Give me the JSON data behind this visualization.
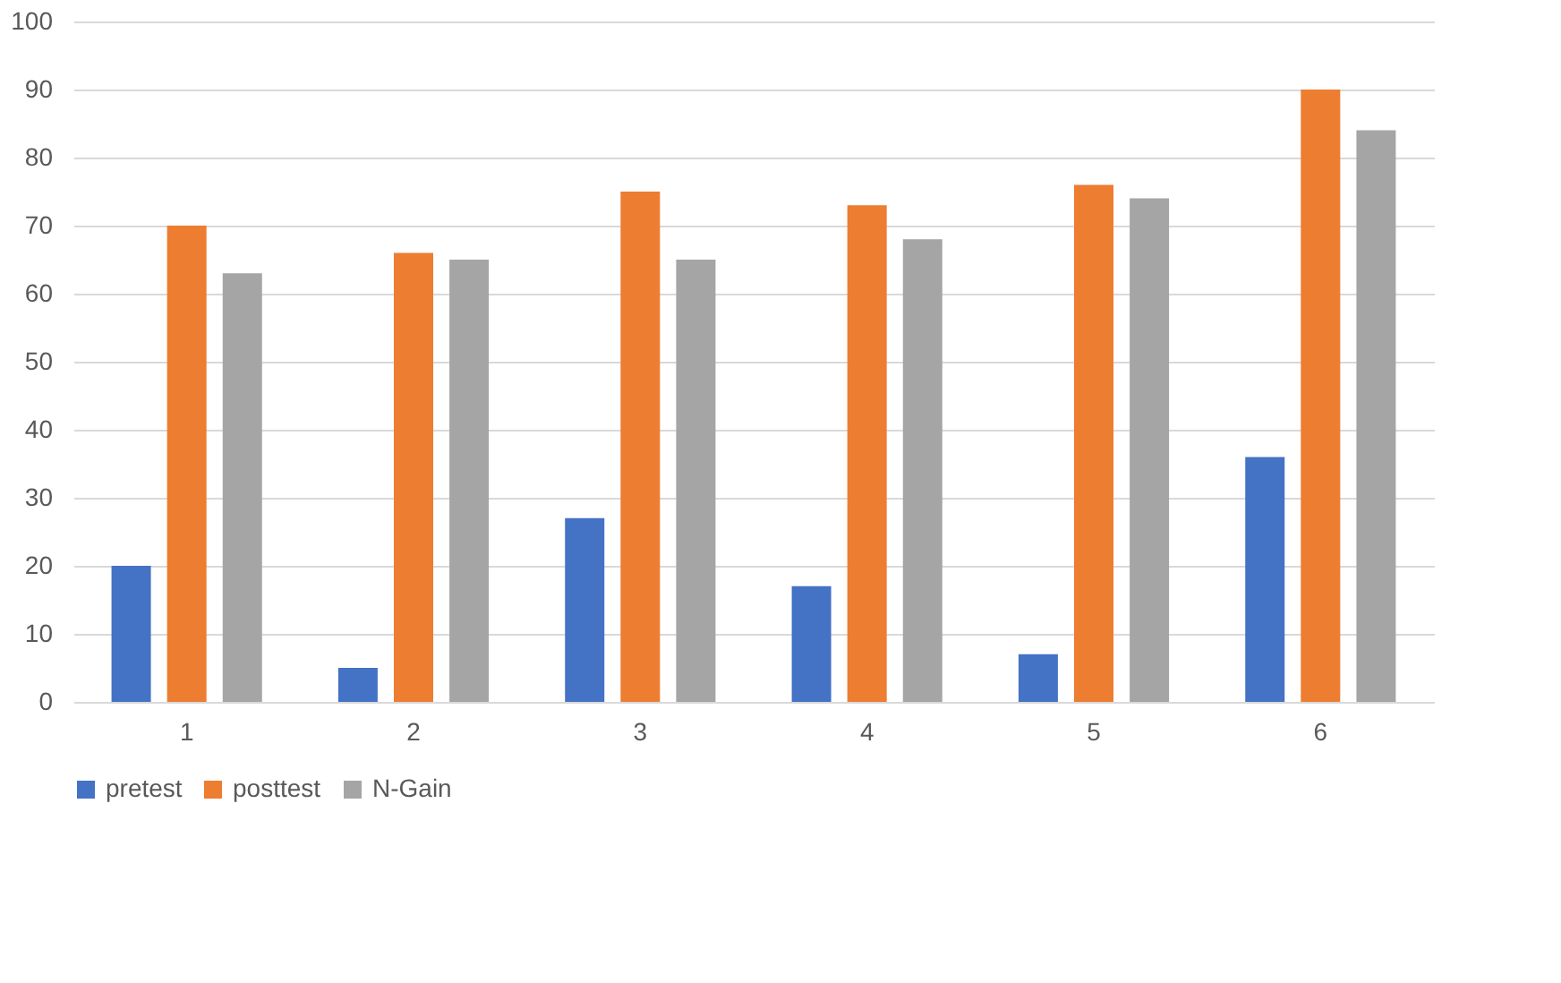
{
  "chart_data": {
    "type": "bar",
    "categories": [
      "1",
      "2",
      "3",
      "4",
      "5",
      "6"
    ],
    "series": [
      {
        "name": "pretest",
        "color": "#4472c4",
        "values": [
          20,
          5,
          27,
          17,
          7,
          36
        ]
      },
      {
        "name": "posttest",
        "color": "#ed7d31",
        "values": [
          70,
          66,
          75,
          73,
          76,
          90
        ]
      },
      {
        "name": "N-Gain",
        "color": "#a5a5a5",
        "values": [
          63,
          65,
          65,
          68,
          74,
          84
        ]
      }
    ],
    "ylim": [
      0,
      100
    ],
    "yticks": [
      0,
      10,
      20,
      30,
      40,
      50,
      60,
      70,
      80,
      90,
      100
    ],
    "grid": "y",
    "legend": "bottom"
  }
}
